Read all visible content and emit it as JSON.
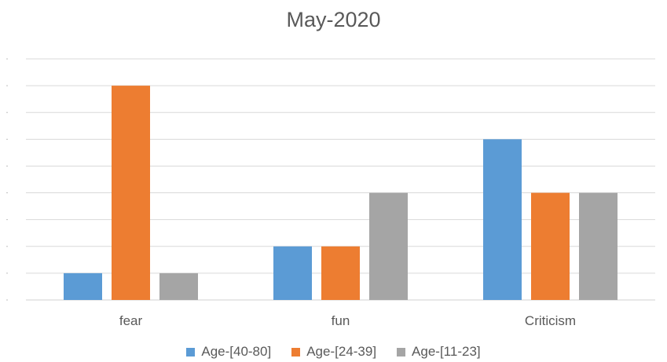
{
  "chart_data": {
    "type": "bar",
    "title": "May-2020",
    "categories": [
      "fear",
      "fun",
      "Criticism"
    ],
    "series": [
      {
        "name": "Age-[40-80]",
        "color": "#5B9BD5",
        "values": [
          1,
          2,
          6
        ]
      },
      {
        "name": "Age-[24-39]",
        "color": "#ED7D31",
        "values": [
          8,
          2,
          4
        ]
      },
      {
        "name": "Age-[11-23]",
        "color": "#A5A5A5",
        "values": [
          1,
          4,
          4
        ]
      }
    ],
    "xlabel": "",
    "ylabel": "",
    "ylim": [
      0,
      9
    ],
    "grid": true,
    "legend_position": "bottom"
  }
}
